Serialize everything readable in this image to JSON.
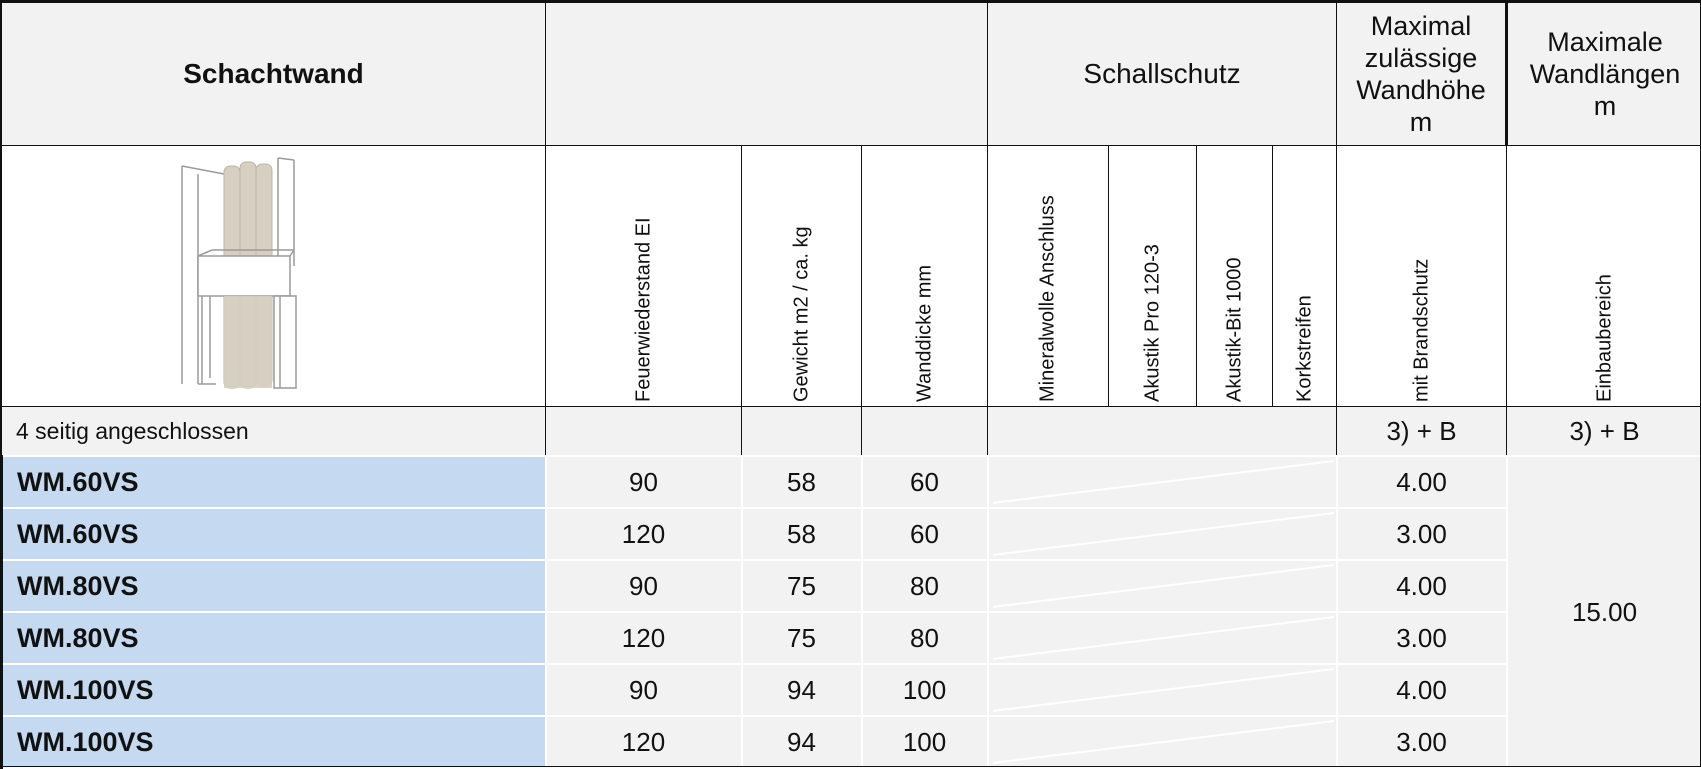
{
  "header": {
    "col1": "Schachtwand",
    "schallschutz": "Schallschutz",
    "hoehe": [
      "Maximal",
      "zulässige",
      "Wandhöhe",
      "m"
    ],
    "laenge": [
      "Maximale",
      "Wandlängen",
      "m"
    ]
  },
  "subheader": {
    "feuer": "Feuerwiederstand EI",
    "gewicht": "Gewicht m2 / ca. kg",
    "dicke": "Wanddicke mm",
    "mineral": "Mineralwolle Anschluss",
    "akustik_pro": "Akustik Pro 120-3",
    "akustik_bit": "Akustik-Bit 1000",
    "kork": "Korkstreifen",
    "brand": "mit Brandschutz",
    "einbau": "Einbaubereich"
  },
  "condition": {
    "label": "4 seitig angeschlossen",
    "hoehe_note": "3) + B",
    "laenge_note": "3) + B"
  },
  "rows": [
    {
      "code": "WM.60VS",
      "feuer": "90",
      "gewicht": "58",
      "dicke": "60",
      "hoehe": "4.00"
    },
    {
      "code": "WM.60VS",
      "feuer": "120",
      "gewicht": "58",
      "dicke": "60",
      "hoehe": "3.00"
    },
    {
      "code": "WM.80VS",
      "feuer": "90",
      "gewicht": "75",
      "dicke": "80",
      "hoehe": "4.00"
    },
    {
      "code": "WM.80VS",
      "feuer": "120",
      "gewicht": "75",
      "dicke": "80",
      "hoehe": "3.00"
    },
    {
      "code": "WM.100VS",
      "feuer": "90",
      "gewicht": "94",
      "dicke": "100",
      "hoehe": "4.00"
    },
    {
      "code": "WM.100VS",
      "feuer": "120",
      "gewicht": "94",
      "dicke": "100",
      "hoehe": "3.00"
    }
  ],
  "laenge_value": "15.00",
  "colors": {
    "header_bg": "#f2f2f2",
    "code_bg": "#c5d9f1",
    "panel": "#d6cfc2"
  },
  "icons": {
    "wall_illustration": "schachtwand-illustration"
  }
}
